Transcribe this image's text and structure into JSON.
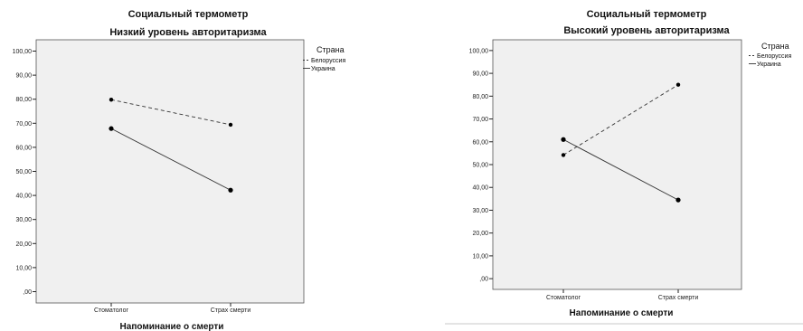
{
  "chart_data": [
    {
      "type": "line",
      "title": "Социальный термометр",
      "subtitle": "Низкий уровень авторитаризма",
      "xlabel": "Напоминание о смерти",
      "ylabel": "",
      "categories": [
        "Стоматолог",
        "Страх смерти"
      ],
      "yticks": [
        ",00",
        "10,00",
        "20,00",
        "30,00",
        "40,00",
        "50,00",
        "60,00",
        "70,00",
        "80,00",
        "90,00",
        "100,00"
      ],
      "ylim": [
        0,
        100
      ],
      "legend_title": "Страна",
      "legend_position": "right",
      "grid": false,
      "series": [
        {
          "name": "Белоруссия",
          "values": [
            79.8,
            69.4
          ],
          "line_style": "dashed",
          "color": "#333333"
        },
        {
          "name": "Украина",
          "values": [
            67.8,
            42.2
          ],
          "line_style": "solid",
          "color": "#333333"
        }
      ]
    },
    {
      "type": "line",
      "title": "Социальный термометр",
      "subtitle": "Высокий уровень авторитаризма",
      "xlabel": "Напоминание о смерти",
      "ylabel": "",
      "categories": [
        "Стоматолог",
        "Страх смерти"
      ],
      "yticks": [
        ",00",
        "10,00",
        "20,00",
        "30,00",
        "40,00",
        "50,00",
        "60,00",
        "70,00",
        "80,00",
        "90,00",
        "100,00"
      ],
      "ylim": [
        0,
        100
      ],
      "legend_title": "Страна",
      "legend_position": "right",
      "grid": false,
      "series": [
        {
          "name": "Белоруссия",
          "values": [
            54.2,
            85.0
          ],
          "line_style": "dashed",
          "color": "#333333"
        },
        {
          "name": "Украина",
          "values": [
            61.0,
            34.5
          ],
          "line_style": "solid",
          "color": "#333333"
        }
      ]
    }
  ],
  "colors": {
    "plot_background": "#f0f0f0",
    "plot_border": "#555555"
  }
}
